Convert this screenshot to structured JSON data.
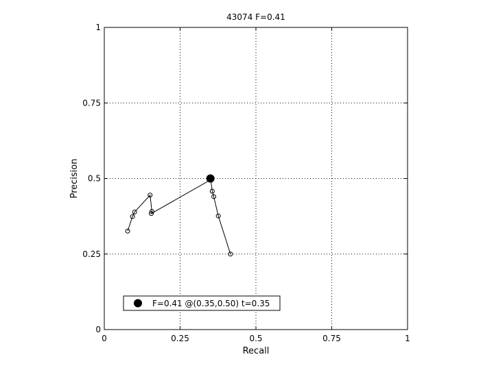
{
  "chart_data": {
    "type": "scatter",
    "title": "43074 F=0.41",
    "xlabel": "Recall",
    "ylabel": "Precision",
    "xlim": [
      0,
      1
    ],
    "ylim": [
      0,
      1
    ],
    "grid": true,
    "xticks": [
      {
        "value": 0,
        "label": "0"
      },
      {
        "value": 0.25,
        "label": "0.25"
      },
      {
        "value": 0.5,
        "label": "0.5"
      },
      {
        "value": 0.75,
        "label": "0.75"
      },
      {
        "value": 1,
        "label": "1"
      }
    ],
    "yticks": [
      {
        "value": 0,
        "label": "0"
      },
      {
        "value": 0.25,
        "label": "0.25"
      },
      {
        "value": 0.5,
        "label": "0.5"
      },
      {
        "value": 0.75,
        "label": "0.75"
      },
      {
        "value": 1,
        "label": "1"
      }
    ],
    "series": [
      {
        "x": [
          0.077,
          0.093,
          0.1,
          0.151,
          0.157,
          0.155,
          0.351,
          0.356,
          0.361,
          0.376,
          0.416
        ],
        "y": [
          0.326,
          0.374,
          0.389,
          0.445,
          0.391,
          0.384,
          0.496,
          0.458,
          0.44,
          0.376,
          0.25
        ]
      }
    ],
    "best_point": {
      "x": 0.35,
      "y": 0.5
    },
    "legend": {
      "position": "bottom-left",
      "label": "F=0.41 @(0.35,0.50) t=0.35"
    }
  }
}
